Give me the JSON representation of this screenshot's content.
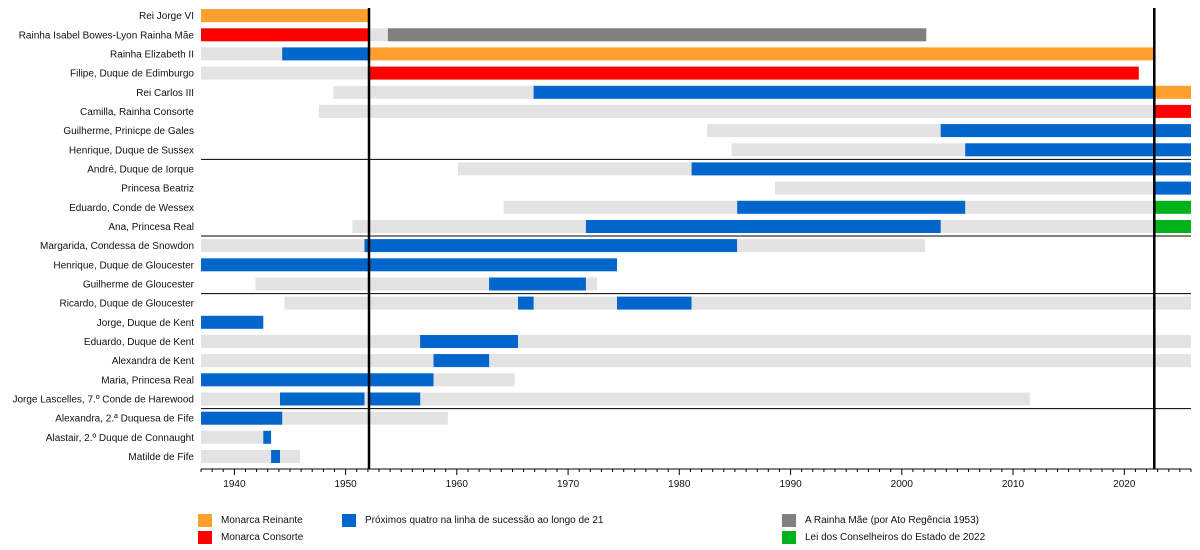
{
  "colors": {
    "reigning": "#ff9f2e",
    "consort": "#ff0000",
    "succession": "#0066cc",
    "queen_mother": "#808080",
    "counsellors": "#00b31a",
    "lifespan": "#e3e3e3"
  },
  "legend": {
    "reigning": "Monarca Reinante",
    "consort": "Monarca Consorte",
    "succession": "Próximos quatro na linha de sucessão ao longo de 21",
    "queen_mother": "A Rainha Mãe (por Ato Regência 1953)",
    "counsellors": "Lei dos Conselheiros do Estado de 2022"
  },
  "chart_data": {
    "type": "timeline",
    "x_range": [
      1937,
      2026
    ],
    "x_ticks": [
      1940,
      1950,
      1960,
      1970,
      1980,
      1990,
      2000,
      2010,
      2020
    ],
    "reign_lines": [
      1952.1,
      2022.7
    ],
    "group_separators_after": [
      "Henrique, Duque de Sussex",
      "Ana, Princesa Real",
      "Guilherme de Gloucester",
      "Jorge Lascelles, 7.º Conde de Harewood"
    ],
    "rows": [
      {
        "name": "Rei Jorge VI",
        "bars": [
          {
            "start": 1937,
            "end": 1952.1,
            "role": "reigning"
          }
        ]
      },
      {
        "name": "Rainha Isabel Bowes-Lyon Rainha Mãe",
        "bars": [
          {
            "start": 1937,
            "end": 1952.1,
            "role": "consort"
          },
          {
            "start": 1952.1,
            "end": 2002.2,
            "role": "lifespan"
          },
          {
            "start": 1953.8,
            "end": 2002.2,
            "role": "queen_mother"
          }
        ]
      },
      {
        "name": "Rainha Elizabeth II",
        "bars": [
          {
            "start": 1937,
            "end": 1944.3,
            "role": "lifespan"
          },
          {
            "start": 1944.3,
            "end": 1952.1,
            "role": "succession"
          },
          {
            "start": 1952.1,
            "end": 2022.7,
            "role": "reigning"
          }
        ]
      },
      {
        "name": "Filipe, Duque de Edimburgo",
        "bars": [
          {
            "start": 1937,
            "end": 1952.1,
            "role": "lifespan"
          },
          {
            "start": 1952.1,
            "end": 2021.3,
            "role": "consort"
          }
        ]
      },
      {
        "name": "Rei Carlos III",
        "bars": [
          {
            "start": 1948.9,
            "end": 2022.7,
            "role": "lifespan"
          },
          {
            "start": 1966.9,
            "end": 2022.7,
            "role": "succession"
          },
          {
            "start": 2022.7,
            "end": 2026,
            "role": "reigning"
          }
        ]
      },
      {
        "name": "Camilla, Rainha Consorte",
        "bars": [
          {
            "start": 1947.6,
            "end": 2022.7,
            "role": "lifespan"
          },
          {
            "start": 2022.7,
            "end": 2026,
            "role": "consort"
          }
        ]
      },
      {
        "name": "Guilherme, Prinicpe de Gales",
        "bars": [
          {
            "start": 1982.5,
            "end": 2026,
            "role": "lifespan"
          },
          {
            "start": 2003.5,
            "end": 2026,
            "role": "succession"
          }
        ]
      },
      {
        "name": "Henrique, Duque de Sussex",
        "bars": [
          {
            "start": 1984.7,
            "end": 2026,
            "role": "lifespan"
          },
          {
            "start": 2005.7,
            "end": 2026,
            "role": "succession"
          }
        ]
      },
      {
        "name": "André, Duque de Iorque",
        "bars": [
          {
            "start": 1960.1,
            "end": 2026,
            "role": "lifespan"
          },
          {
            "start": 1981.1,
            "end": 2026,
            "role": "succession"
          }
        ]
      },
      {
        "name": "Princesa Beatriz",
        "bars": [
          {
            "start": 1988.6,
            "end": 2026,
            "role": "lifespan"
          },
          {
            "start": 2022.7,
            "end": 2026,
            "role": "succession"
          }
        ]
      },
      {
        "name": "Eduardo, Conde de Wessex",
        "bars": [
          {
            "start": 1964.2,
            "end": 2026,
            "role": "lifespan"
          },
          {
            "start": 1985.2,
            "end": 2005.7,
            "role": "succession"
          },
          {
            "start": 2022.7,
            "end": 2026,
            "role": "counsellors"
          }
        ]
      },
      {
        "name": "Ana, Princesa Real",
        "bars": [
          {
            "start": 1950.6,
            "end": 2026,
            "role": "lifespan"
          },
          {
            "start": 1971.6,
            "end": 2003.5,
            "role": "succession"
          },
          {
            "start": 2022.7,
            "end": 2026,
            "role": "counsellors"
          }
        ]
      },
      {
        "name": "Margarida, Condessa de Snowdon",
        "bars": [
          {
            "start": 1937,
            "end": 2002.1,
            "role": "lifespan"
          },
          {
            "start": 1951.7,
            "end": 1985.2,
            "role": "succession"
          }
        ]
      },
      {
        "name": "Henrique, Duque de Gloucester",
        "bars": [
          {
            "start": 1937,
            "end": 1974.4,
            "role": "succession"
          }
        ]
      },
      {
        "name": "Guilherme de Gloucester",
        "bars": [
          {
            "start": 1941.9,
            "end": 1972.6,
            "role": "lifespan"
          },
          {
            "start": 1962.9,
            "end": 1971.6,
            "role": "succession"
          }
        ]
      },
      {
        "name": "Ricardo, Duque de Gloucester",
        "bars": [
          {
            "start": 1944.5,
            "end": 2026,
            "role": "lifespan"
          },
          {
            "start": 1965.5,
            "end": 1966.9,
            "role": "succession"
          },
          {
            "start": 1974.4,
            "end": 1981.1,
            "role": "succession"
          }
        ]
      },
      {
        "name": "Jorge, Duque de Kent",
        "bars": [
          {
            "start": 1937,
            "end": 1942.6,
            "role": "succession"
          }
        ]
      },
      {
        "name": "Eduardo, Duque de Kent",
        "bars": [
          {
            "start": 1937,
            "end": 2026,
            "role": "lifespan"
          },
          {
            "start": 1956.7,
            "end": 1965.5,
            "role": "succession"
          }
        ]
      },
      {
        "name": "Alexandra de Kent",
        "bars": [
          {
            "start": 1937,
            "end": 2026,
            "role": "lifespan"
          },
          {
            "start": 1957.9,
            "end": 1962.9,
            "role": "succession"
          }
        ]
      },
      {
        "name": "Maria, Princesa Real",
        "bars": [
          {
            "start": 1937,
            "end": 1965.2,
            "role": "lifespan"
          },
          {
            "start": 1937,
            "end": 1957.9,
            "role": "succession"
          }
        ]
      },
      {
        "name": "Jorge Lascelles, 7.º Conde de Harewood",
        "bars": [
          {
            "start": 1937,
            "end": 2011.5,
            "role": "lifespan"
          },
          {
            "start": 1944.1,
            "end": 1951.7,
            "role": "succession"
          },
          {
            "start": 1952.1,
            "end": 1956.7,
            "role": "succession"
          }
        ]
      },
      {
        "name": "Alexandra, 2.ª Duquesa de Fife",
        "bars": [
          {
            "start": 1937,
            "end": 1959.2,
            "role": "lifespan"
          },
          {
            "start": 1937,
            "end": 1944.3,
            "role": "succession"
          }
        ]
      },
      {
        "name": "Alastair, 2.º Duque de Connaught",
        "bars": [
          {
            "start": 1937,
            "end": 1943.3,
            "role": "lifespan"
          },
          {
            "start": 1942.6,
            "end": 1943.3,
            "role": "succession"
          }
        ]
      },
      {
        "name": "Matilde de Fife",
        "bars": [
          {
            "start": 1937,
            "end": 1945.9,
            "role": "lifespan"
          },
          {
            "start": 1943.3,
            "end": 1944.1,
            "role": "succession"
          }
        ]
      }
    ]
  }
}
